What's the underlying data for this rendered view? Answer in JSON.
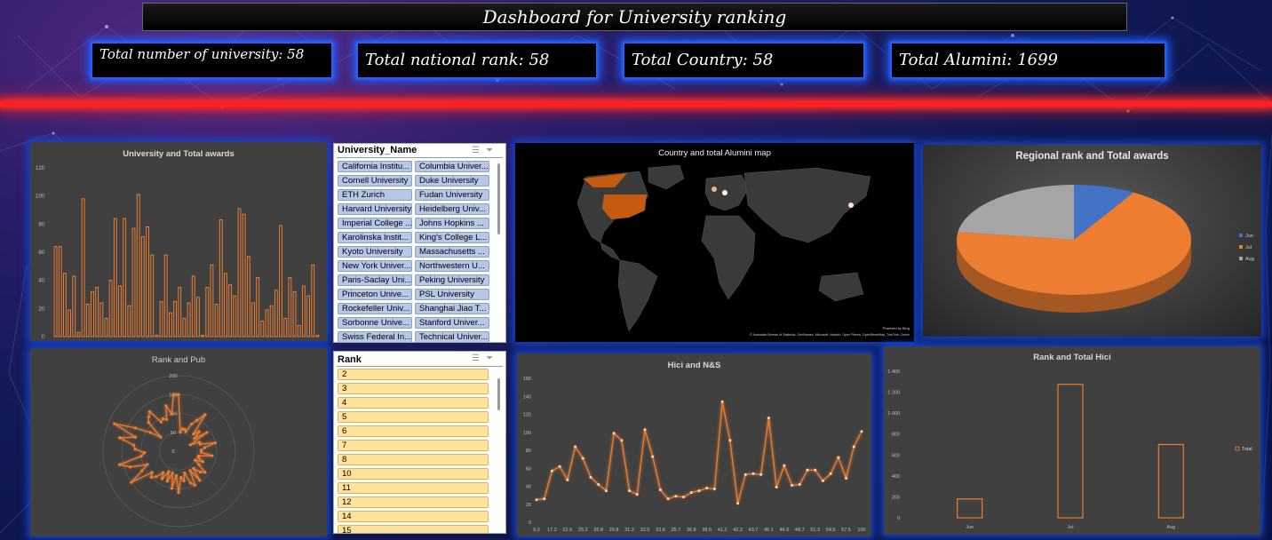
{
  "dashboard": {
    "title": "Dashboard for University ranking"
  },
  "kpis": [
    {
      "label": "Total number of university: 58"
    },
    {
      "label": "Total national rank: 58"
    },
    {
      "label": "Total Country: 58"
    },
    {
      "label": "Total Alumini: 1699"
    }
  ],
  "slicers": {
    "university": {
      "header": "University_Name",
      "items": [
        "California Institu...",
        "Columbia Univer...",
        "Cornell University",
        "Duke University",
        "ETH Zurich",
        "Fudan University",
        "Harvard University",
        "Heidelberg Univ...",
        "Imperial College ...",
        "Johns Hopkins ...",
        "Karolinska Instit...",
        "King's College L...",
        "Kyoto University",
        "Massachusetts ...",
        "New York Univer...",
        "Northwestern U...",
        "Paris-Saclay Uni...",
        "Peking University",
        "Princeton Unive...",
        "PSL University",
        "Rockefeller Univ...",
        "Shanghai Jiao T...",
        "Sorbonne Unive...",
        "Stanford Univer...",
        "Swiss Federal In...",
        "Technical Univer..."
      ],
      "multiselect_icon": "multi-select-icon",
      "clear_icon": "clear-filter-icon"
    },
    "rank": {
      "header": "Rank",
      "items": [
        "2",
        "3",
        "4",
        "5",
        "6",
        "7",
        "8",
        "10",
        "11",
        "12",
        "14",
        "15"
      ],
      "multiselect_icon": "multi-select-icon",
      "clear_icon": "clear-filter-icon"
    }
  },
  "chart_data": [
    {
      "id": "awards",
      "type": "bar",
      "title": "University and Total awards",
      "ylim": [
        0,
        120
      ],
      "yticks": [
        0,
        20,
        40,
        60,
        80,
        100,
        120
      ],
      "values": [
        64,
        64,
        45,
        19,
        43,
        3,
        98,
        23,
        32,
        35,
        24,
        13,
        40,
        84,
        36,
        84,
        22,
        77,
        101,
        71,
        78,
        58,
        1,
        25,
        58,
        17,
        25,
        35,
        13,
        24,
        43,
        28,
        1,
        35,
        51,
        23,
        83,
        45,
        37,
        29,
        91,
        87,
        57,
        24,
        42,
        11,
        19,
        22,
        33,
        79,
        13,
        42,
        32,
        8,
        36,
        29,
        51,
        1
      ],
      "color": "#ed7d31",
      "grid": false
    },
    {
      "id": "map",
      "type": "map",
      "title": "Country and total Alumini map",
      "highlighted_regions": [
        "United States",
        "Canada",
        "United Kingdom",
        "France",
        "Switzerland",
        "Germany",
        "Sweden",
        "Japan",
        "China"
      ],
      "attribution_small": "Powered by Bing",
      "attribution": "© Australian Bureau of Statistics, GeoNames, Microsoft, Navinfo, Open Places, OpenStreetMap, TomTom, Zenrin",
      "colors": {
        "land": "#3a3a3a",
        "high": "#c55a11",
        "med": "#f4b183",
        "low": "#ffffff"
      }
    },
    {
      "id": "regional",
      "type": "pie",
      "title": "Regional rank and Total awards",
      "categories": [
        "Jun",
        "Jul",
        "Aug"
      ],
      "values": [
        8.5,
        68.8,
        22.7
      ],
      "colors": [
        "#4472c4",
        "#ed7d31",
        "#a5a5a5"
      ],
      "legend": "right"
    },
    {
      "id": "rankpub",
      "type": "radar",
      "title": "Rank and Pub",
      "rings": [
        "0",
        "50",
        "100",
        "150",
        "200"
      ],
      "rmax": 200,
      "values": [
        150,
        50,
        60,
        60,
        55,
        80,
        95,
        120,
        60,
        75,
        55,
        90,
        35,
        60,
        60,
        100,
        70,
        60,
        60,
        90,
        55,
        55,
        70,
        50,
        65,
        90,
        80,
        60,
        95,
        60,
        100,
        90,
        60,
        80,
        70,
        110,
        65,
        100,
        60,
        85,
        60,
        85,
        70,
        90,
        100,
        90,
        150,
        110,
        90,
        135,
        160,
        100,
        90,
        115,
        120,
        160,
        120,
        185,
        130,
        90,
        60,
        110,
        120,
        130,
        90,
        95,
        90,
        125,
        100,
        150
      ],
      "color": "#ed7d31"
    },
    {
      "id": "hici",
      "type": "line",
      "title": "Hici and N&S",
      "ylim": [
        0,
        160
      ],
      "yticks": [
        0,
        20,
        40,
        60,
        80,
        100,
        120,
        140,
        160
      ],
      "x": [
        "9.2",
        "",
        "17.2",
        "",
        "21.6",
        "",
        "25.2",
        "",
        "26.8",
        "",
        "29.8",
        "",
        "31.2",
        "",
        "32.5",
        "",
        "33.8",
        "",
        "35.7",
        "",
        "36.8",
        "",
        "38.5",
        "",
        "41.2",
        "",
        "42.2",
        "",
        "43.7",
        "",
        "45.1",
        "",
        "46.9",
        "",
        "48.7",
        "",
        "51.3",
        "",
        "54.5",
        "",
        "57.5",
        "",
        "100"
      ],
      "xticks": [
        "9.2",
        "17.2",
        "21.6",
        "25.2",
        "26.8",
        "29.8",
        "31.2",
        "32.5",
        "33.8",
        "35.7",
        "36.8",
        "38.5",
        "41.2",
        "42.2",
        "43.7",
        "45.1",
        "46.9",
        "48.7",
        "51.3",
        "54.5",
        "57.5",
        "100"
      ],
      "values": [
        25,
        26,
        57,
        62,
        47,
        84,
        71,
        50,
        42,
        35,
        99,
        91,
        35,
        31,
        103,
        73,
        36,
        26,
        29,
        28,
        33,
        35,
        38,
        37,
        134,
        91,
        21,
        53,
        54,
        53,
        116,
        39,
        63,
        41,
        42,
        58,
        58,
        46,
        54,
        72,
        49,
        84,
        101
      ],
      "color": "#ed7d31"
    },
    {
      "id": "rankhici",
      "type": "bar",
      "title": "Rank and Total Hici",
      "categories": [
        "Jun",
        "Jul",
        "Aug"
      ],
      "values": [
        180,
        1275,
        700
      ],
      "ylim": [
        0,
        1400
      ],
      "yticks": [
        0,
        200,
        400,
        600,
        800,
        1000,
        1200,
        1400
      ],
      "legend": [
        "Total"
      ],
      "color": "#ed7d31",
      "style": "outline"
    }
  ]
}
